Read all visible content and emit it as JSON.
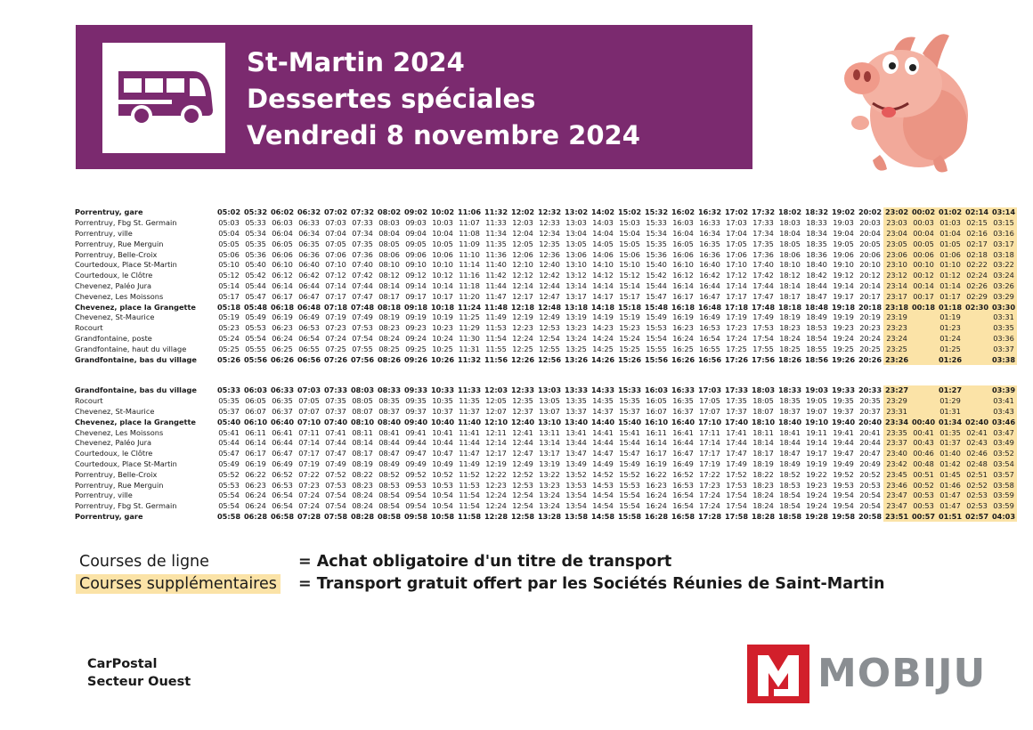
{
  "header": {
    "title_lines": [
      "St-Martin 2024",
      "Dessertes spéciales",
      "Vendredi 8 novembre 2024"
    ],
    "bus_icon": "bus-icon",
    "mascot": "pig-mascot"
  },
  "timetable_outbound": {
    "rows": [
      {
        "stop": "Porrentruy, gare",
        "bold": true,
        "times": [
          "05:02",
          "05:32",
          "06:02",
          "06:32",
          "07:02",
          "07:32",
          "08:02",
          "09:02",
          "10:02",
          "11:06",
          "11:32",
          "12:02",
          "12:32",
          "13:02",
          "14:02",
          "15:02",
          "15:32",
          "16:02",
          "16:32",
          "17:02",
          "17:32",
          "18:02",
          "18:32",
          "19:02",
          "20:02",
          "23:02",
          "00:02",
          "01:02",
          "02:14",
          "03:14"
        ]
      },
      {
        "stop": "Porrentruy, Fbg St. Germain",
        "bold": false,
        "times": [
          "05:03",
          "05:33",
          "06:03",
          "06:33",
          "07:03",
          "07:33",
          "08:03",
          "09:03",
          "10:03",
          "11:07",
          "11:33",
          "12:03",
          "12:33",
          "13:03",
          "14:03",
          "15:03",
          "15:33",
          "16:03",
          "16:33",
          "17:03",
          "17:33",
          "18:03",
          "18:33",
          "19:03",
          "20:03",
          "23:03",
          "00:03",
          "01:03",
          "02:15",
          "03:15"
        ]
      },
      {
        "stop": "Porrentruy, ville",
        "bold": false,
        "times": [
          "05:04",
          "05:34",
          "06:04",
          "06:34",
          "07:04",
          "07:34",
          "08:04",
          "09:04",
          "10:04",
          "11:08",
          "11:34",
          "12:04",
          "12:34",
          "13:04",
          "14:04",
          "15:04",
          "15:34",
          "16:04",
          "16:34",
          "17:04",
          "17:34",
          "18:04",
          "18:34",
          "19:04",
          "20:04",
          "23:04",
          "00:04",
          "01:04",
          "02:16",
          "03:16"
        ]
      },
      {
        "stop": "Porrentruy, Rue Merguin",
        "bold": false,
        "times": [
          "05:05",
          "05:35",
          "06:05",
          "06:35",
          "07:05",
          "07:35",
          "08:05",
          "09:05",
          "10:05",
          "11:09",
          "11:35",
          "12:05",
          "12:35",
          "13:05",
          "14:05",
          "15:05",
          "15:35",
          "16:05",
          "16:35",
          "17:05",
          "17:35",
          "18:05",
          "18:35",
          "19:05",
          "20:05",
          "23:05",
          "00:05",
          "01:05",
          "02:17",
          "03:17"
        ]
      },
      {
        "stop": "Porrentruy, Belle-Croix",
        "bold": false,
        "times": [
          "05:06",
          "05:36",
          "06:06",
          "06:36",
          "07:06",
          "07:36",
          "08:06",
          "09:06",
          "10:06",
          "11:10",
          "11:36",
          "12:06",
          "12:36",
          "13:06",
          "14:06",
          "15:06",
          "15:36",
          "16:06",
          "16:36",
          "17:06",
          "17:36",
          "18:06",
          "18:36",
          "19:06",
          "20:06",
          "23:06",
          "00:06",
          "01:06",
          "02:18",
          "03:18"
        ]
      },
      {
        "stop": "Courtedoux, Place St-Martin",
        "bold": false,
        "times": [
          "05:10",
          "05:40",
          "06:10",
          "06:40",
          "07:10",
          "07:40",
          "08:10",
          "09:10",
          "10:10",
          "11:14",
          "11:40",
          "12:10",
          "12:40",
          "13:10",
          "14:10",
          "15:10",
          "15:40",
          "16:10",
          "16:40",
          "17:10",
          "17:40",
          "18:10",
          "18:40",
          "19:10",
          "20:10",
          "23:10",
          "00:10",
          "01:10",
          "02:22",
          "03:22"
        ]
      },
      {
        "stop": "Courtedoux, le Clôtre",
        "bold": false,
        "times": [
          "05:12",
          "05:42",
          "06:12",
          "06:42",
          "07:12",
          "07:42",
          "08:12",
          "09:12",
          "10:12",
          "11:16",
          "11:42",
          "12:12",
          "12:42",
          "13:12",
          "14:12",
          "15:12",
          "15:42",
          "16:12",
          "16:42",
          "17:12",
          "17:42",
          "18:12",
          "18:42",
          "19:12",
          "20:12",
          "23:12",
          "00:12",
          "01:12",
          "02:24",
          "03:24"
        ]
      },
      {
        "stop": "Chevenez, Paléo Jura",
        "bold": false,
        "times": [
          "05:14",
          "05:44",
          "06:14",
          "06:44",
          "07:14",
          "07:44",
          "08:14",
          "09:14",
          "10:14",
          "11:18",
          "11:44",
          "12:14",
          "12:44",
          "13:14",
          "14:14",
          "15:14",
          "15:44",
          "16:14",
          "16:44",
          "17:14",
          "17:44",
          "18:14",
          "18:44",
          "19:14",
          "20:14",
          "23:14",
          "00:14",
          "01:14",
          "02:26",
          "03:26"
        ]
      },
      {
        "stop": "Chevenez, Les Moissons",
        "bold": false,
        "times": [
          "05:17",
          "05:47",
          "06:17",
          "06:47",
          "07:17",
          "07:47",
          "08:17",
          "09:17",
          "10:17",
          "11:20",
          "11:47",
          "12:17",
          "12:47",
          "13:17",
          "14:17",
          "15:17",
          "15:47",
          "16:17",
          "16:47",
          "17:17",
          "17:47",
          "18:17",
          "18:47",
          "19:17",
          "20:17",
          "23:17",
          "00:17",
          "01:17",
          "02:29",
          "03:29"
        ]
      },
      {
        "stop": "Chevenez, place la Grangette",
        "bold": true,
        "times": [
          "05:18",
          "05:48",
          "06:18",
          "06:48",
          "07:18",
          "07:48",
          "08:18",
          "09:18",
          "10:18",
          "11:24",
          "11:48",
          "12:18",
          "12:48",
          "13:18",
          "14:18",
          "15:18",
          "15:48",
          "16:18",
          "16:48",
          "17:18",
          "17:48",
          "18:18",
          "18:48",
          "19:18",
          "20:18",
          "23:18",
          "00:18",
          "01:18",
          "02:30",
          "03:30"
        ]
      },
      {
        "stop": "Chevenez, St-Maurice",
        "bold": false,
        "times": [
          "05:19",
          "05:49",
          "06:19",
          "06:49",
          "07:19",
          "07:49",
          "08:19",
          "09:19",
          "10:19",
          "11:25",
          "11:49",
          "12:19",
          "12:49",
          "13:19",
          "14:19",
          "15:19",
          "15:49",
          "16:19",
          "16:49",
          "17:19",
          "17:49",
          "18:19",
          "18:49",
          "19:19",
          "20:19",
          "23:19",
          "",
          "01:19",
          "",
          "03:31"
        ]
      },
      {
        "stop": "Rocourt",
        "bold": false,
        "times": [
          "05:23",
          "05:53",
          "06:23",
          "06:53",
          "07:23",
          "07:53",
          "08:23",
          "09:23",
          "10:23",
          "11:29",
          "11:53",
          "12:23",
          "12:53",
          "13:23",
          "14:23",
          "15:23",
          "15:53",
          "16:23",
          "16:53",
          "17:23",
          "17:53",
          "18:23",
          "18:53",
          "19:23",
          "20:23",
          "23:23",
          "",
          "01:23",
          "",
          "03:35"
        ]
      },
      {
        "stop": "Grandfontaine, poste",
        "bold": false,
        "times": [
          "05:24",
          "05:54",
          "06:24",
          "06:54",
          "07:24",
          "07:54",
          "08:24",
          "09:24",
          "10:24",
          "11:30",
          "11:54",
          "12:24",
          "12:54",
          "13:24",
          "14:24",
          "15:24",
          "15:54",
          "16:24",
          "16:54",
          "17:24",
          "17:54",
          "18:24",
          "18:54",
          "19:24",
          "20:24",
          "23:24",
          "",
          "01:24",
          "",
          "03:36"
        ]
      },
      {
        "stop": "Grandfontaine, haut du village",
        "bold": false,
        "times": [
          "05:25",
          "05:55",
          "06:25",
          "06:55",
          "07:25",
          "07:55",
          "08:25",
          "09:25",
          "10:25",
          "11:31",
          "11:55",
          "12:25",
          "12:55",
          "13:25",
          "14:25",
          "15:25",
          "15:55",
          "16:25",
          "16:55",
          "17:25",
          "17:55",
          "18:25",
          "18:55",
          "19:25",
          "20:25",
          "23:25",
          "",
          "01:25",
          "",
          "03:37"
        ]
      },
      {
        "stop": "Grandfontaine, bas du village",
        "bold": true,
        "times": [
          "05:26",
          "05:56",
          "06:26",
          "06:56",
          "07:26",
          "07:56",
          "08:26",
          "09:26",
          "10:26",
          "11:32",
          "11:56",
          "12:26",
          "12:56",
          "13:26",
          "14:26",
          "15:26",
          "15:56",
          "16:26",
          "16:56",
          "17:26",
          "17:56",
          "18:26",
          "18:56",
          "19:26",
          "20:26",
          "23:26",
          "",
          "01:26",
          "",
          "03:38"
        ]
      }
    ]
  },
  "timetable_return": {
    "rows": [
      {
        "stop": "Grandfontaine, bas du village",
        "bold": true,
        "times": [
          "05:33",
          "06:03",
          "06:33",
          "07:03",
          "07:33",
          "08:03",
          "08:33",
          "09:33",
          "10:33",
          "11:33",
          "12:03",
          "12:33",
          "13:03",
          "13:33",
          "14:33",
          "15:33",
          "16:03",
          "16:33",
          "17:03",
          "17:33",
          "18:03",
          "18:33",
          "19:03",
          "19:33",
          "20:33",
          "23:27",
          "",
          "01:27",
          "",
          "03:39"
        ]
      },
      {
        "stop": "Rocourt",
        "bold": false,
        "times": [
          "05:35",
          "06:05",
          "06:35",
          "07:05",
          "07:35",
          "08:05",
          "08:35",
          "09:35",
          "10:35",
          "11:35",
          "12:05",
          "12:35",
          "13:05",
          "13:35",
          "14:35",
          "15:35",
          "16:05",
          "16:35",
          "17:05",
          "17:35",
          "18:05",
          "18:35",
          "19:05",
          "19:35",
          "20:35",
          "23:29",
          "",
          "01:29",
          "",
          "03:41"
        ]
      },
      {
        "stop": "Chevenez, St-Maurice",
        "bold": false,
        "times": [
          "05:37",
          "06:07",
          "06:37",
          "07:07",
          "07:37",
          "08:07",
          "08:37",
          "09:37",
          "10:37",
          "11:37",
          "12:07",
          "12:37",
          "13:07",
          "13:37",
          "14:37",
          "15:37",
          "16:07",
          "16:37",
          "17:07",
          "17:37",
          "18:07",
          "18:37",
          "19:07",
          "19:37",
          "20:37",
          "23:31",
          "",
          "01:31",
          "",
          "03:43"
        ]
      },
      {
        "stop": "Chevenez, place la Grangette",
        "bold": true,
        "times": [
          "05:40",
          "06:10",
          "06:40",
          "07:10",
          "07:40",
          "08:10",
          "08:40",
          "09:40",
          "10:40",
          "11:40",
          "12:10",
          "12:40",
          "13:10",
          "13:40",
          "14:40",
          "15:40",
          "16:10",
          "16:40",
          "17:10",
          "17:40",
          "18:10",
          "18:40",
          "19:10",
          "19:40",
          "20:40",
          "23:34",
          "00:40",
          "01:34",
          "02:40",
          "03:46"
        ]
      },
      {
        "stop": "Chevenez, Les Moissons",
        "bold": false,
        "times": [
          "05:41",
          "06:11",
          "06:41",
          "07:11",
          "07:41",
          "08:11",
          "08:41",
          "09:41",
          "10:41",
          "11:41",
          "12:11",
          "12:41",
          "13:11",
          "13:41",
          "14:41",
          "15:41",
          "16:11",
          "16:41",
          "17:11",
          "17:41",
          "18:11",
          "18:41",
          "19:11",
          "19:41",
          "20:41",
          "23:35",
          "00:41",
          "01:35",
          "02:41",
          "03:47"
        ]
      },
      {
        "stop": "Chevenez, Paléo Jura",
        "bold": false,
        "times": [
          "05:44",
          "06:14",
          "06:44",
          "07:14",
          "07:44",
          "08:14",
          "08:44",
          "09:44",
          "10:44",
          "11:44",
          "12:14",
          "12:44",
          "13:14",
          "13:44",
          "14:44",
          "15:44",
          "16:14",
          "16:44",
          "17:14",
          "17:44",
          "18:14",
          "18:44",
          "19:14",
          "19:44",
          "20:44",
          "23:37",
          "00:43",
          "01:37",
          "02:43",
          "03:49"
        ]
      },
      {
        "stop": "Courtedoux, le Clôtre",
        "bold": false,
        "times": [
          "05:47",
          "06:17",
          "06:47",
          "07:17",
          "07:47",
          "08:17",
          "08:47",
          "09:47",
          "10:47",
          "11:47",
          "12:17",
          "12:47",
          "13:17",
          "13:47",
          "14:47",
          "15:47",
          "16:17",
          "16:47",
          "17:17",
          "17:47",
          "18:17",
          "18:47",
          "19:17",
          "19:47",
          "20:47",
          "23:40",
          "00:46",
          "01:40",
          "02:46",
          "03:52"
        ]
      },
      {
        "stop": "Courtedoux, Place St-Martin",
        "bold": false,
        "times": [
          "05:49",
          "06:19",
          "06:49",
          "07:19",
          "07:49",
          "08:19",
          "08:49",
          "09:49",
          "10:49",
          "11:49",
          "12:19",
          "12:49",
          "13:19",
          "13:49",
          "14:49",
          "15:49",
          "16:19",
          "16:49",
          "17:19",
          "17:49",
          "18:19",
          "18:49",
          "19:19",
          "19:49",
          "20:49",
          "23:42",
          "00:48",
          "01:42",
          "02:48",
          "03:54"
        ]
      },
      {
        "stop": "Porrentruy, Belle-Croix",
        "bold": false,
        "times": [
          "05:52",
          "06:22",
          "06:52",
          "07:22",
          "07:52",
          "08:22",
          "08:52",
          "09:52",
          "10:52",
          "11:52",
          "12:22",
          "12:52",
          "13:22",
          "13:52",
          "14:52",
          "15:52",
          "16:22",
          "16:52",
          "17:22",
          "17:52",
          "18:22",
          "18:52",
          "19:22",
          "19:52",
          "20:52",
          "23:45",
          "00:51",
          "01:45",
          "02:51",
          "03:57"
        ]
      },
      {
        "stop": "Porrentruy, Rue Merguin",
        "bold": false,
        "times": [
          "05:53",
          "06:23",
          "06:53",
          "07:23",
          "07:53",
          "08:23",
          "08:53",
          "09:53",
          "10:53",
          "11:53",
          "12:23",
          "12:53",
          "13:23",
          "13:53",
          "14:53",
          "15:53",
          "16:23",
          "16:53",
          "17:23",
          "17:53",
          "18:23",
          "18:53",
          "19:23",
          "19:53",
          "20:53",
          "23:46",
          "00:52",
          "01:46",
          "02:52",
          "03:58"
        ]
      },
      {
        "stop": "Porrentruy, ville",
        "bold": false,
        "times": [
          "05:54",
          "06:24",
          "06:54",
          "07:24",
          "07:54",
          "08:24",
          "08:54",
          "09:54",
          "10:54",
          "11:54",
          "12:24",
          "12:54",
          "13:24",
          "13:54",
          "14:54",
          "15:54",
          "16:24",
          "16:54",
          "17:24",
          "17:54",
          "18:24",
          "18:54",
          "19:24",
          "19:54",
          "20:54",
          "23:47",
          "00:53",
          "01:47",
          "02:53",
          "03:59"
        ]
      },
      {
        "stop": "Porrentruy, Fbg St. Germain",
        "bold": false,
        "times": [
          "05:54",
          "06:24",
          "06:54",
          "07:24",
          "07:54",
          "08:24",
          "08:54",
          "09:54",
          "10:54",
          "11:54",
          "12:24",
          "12:54",
          "13:24",
          "13:54",
          "14:54",
          "15:54",
          "16:24",
          "16:54",
          "17:24",
          "17:54",
          "18:24",
          "18:54",
          "19:24",
          "19:54",
          "20:54",
          "23:47",
          "00:53",
          "01:47",
          "02:53",
          "03:59"
        ]
      },
      {
        "stop": "Porrentruy, gare",
        "bold": true,
        "times": [
          "05:58",
          "06:28",
          "06:58",
          "07:28",
          "07:58",
          "08:28",
          "08:58",
          "09:58",
          "10:58",
          "11:58",
          "12:28",
          "12:58",
          "13:28",
          "13:58",
          "14:58",
          "15:58",
          "16:28",
          "16:58",
          "17:28",
          "17:58",
          "18:28",
          "18:58",
          "19:28",
          "19:58",
          "20:58",
          "23:51",
          "00:57",
          "01:51",
          "02:57",
          "04:03"
        ]
      }
    ]
  },
  "supplementary_columns_from": 25,
  "colors": {
    "banner": "#7b2a6f",
    "supplementary_highlight": "#fbe3a7",
    "mobiju_red": "#d21f2b",
    "mobiju_gray": "#8a8e92"
  },
  "legend": [
    {
      "label": "Courses de ligne",
      "description": "= Achat obligatoire d'un titre de transport",
      "highlighted": false
    },
    {
      "label": "Courses supplémentaires",
      "description": "= Transport gratuit offert par les Sociétés Réunies de Saint-Martin",
      "highlighted": true
    }
  ],
  "footer": {
    "operator_lines": [
      "CarPostal",
      "Secteur Ouest"
    ],
    "brand": "MOBIJU",
    "brand_icon": "mobiju-m-logo"
  }
}
